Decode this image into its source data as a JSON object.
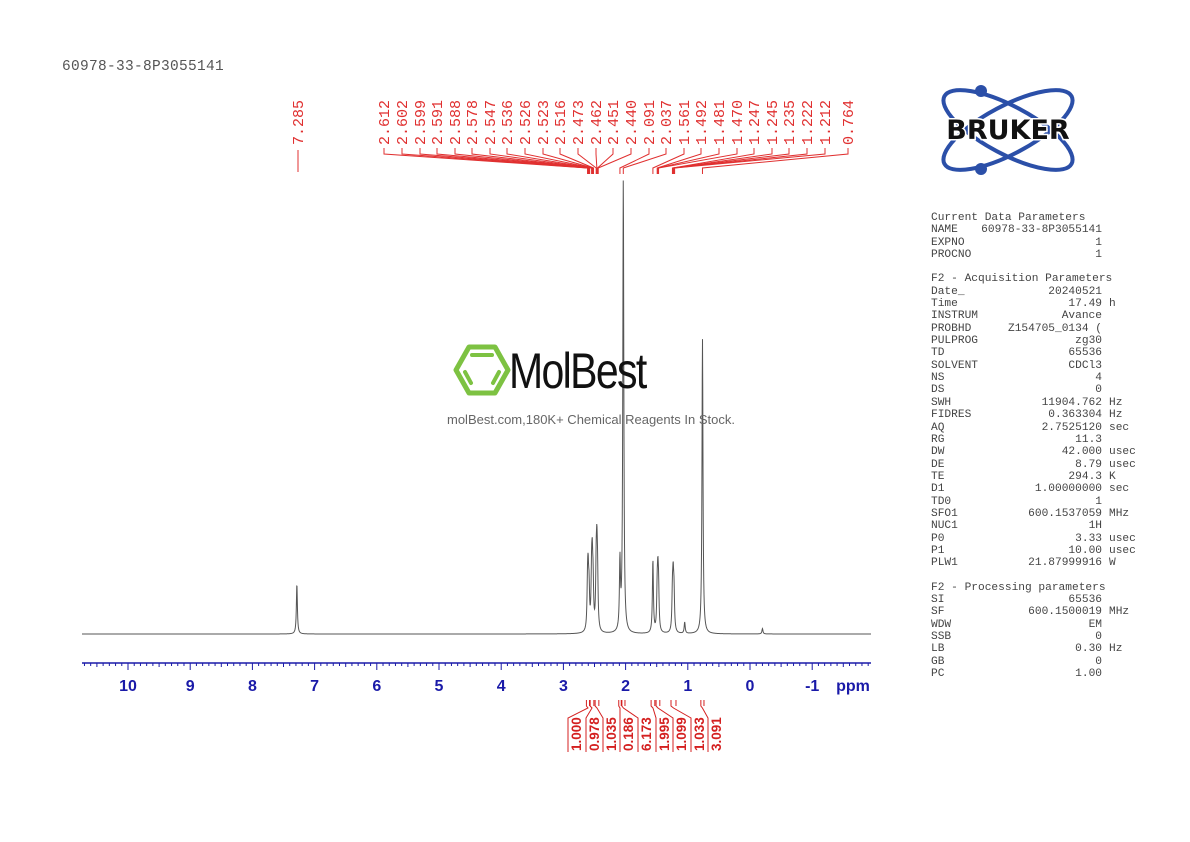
{
  "sample_title": "60978-33-8P3055141",
  "watermark": {
    "brand": "MolBest",
    "tagline": "molBest.com,180K+ Chemical Reagents In Stock.",
    "logo_color": "#7dc242"
  },
  "bruker_logo": {
    "text": "BRUKER",
    "orbit_color": "#2b4fa8",
    "text_color": "#111111"
  },
  "colors": {
    "peak_label": "#e03030",
    "axis": "#1a1aa8",
    "spectrum": "#555555",
    "integral": "#d42020"
  },
  "parameters": {
    "sections": [
      {
        "title": "Current Data Parameters",
        "rows": [
          {
            "key": "NAME",
            "value": "60978-33-8P3055141",
            "unit": ""
          },
          {
            "key": "EXPNO",
            "value": "1",
            "unit": ""
          },
          {
            "key": "PROCNO",
            "value": "1",
            "unit": ""
          }
        ]
      },
      {
        "title": "F2 - Acquisition Parameters",
        "rows": [
          {
            "key": "Date_",
            "value": "20240521",
            "unit": ""
          },
          {
            "key": "Time",
            "value": "17.49",
            "unit": "h"
          },
          {
            "key": "INSTRUM",
            "value": "Avance",
            "unit": ""
          },
          {
            "key": "PROBHD",
            "value": "Z154705_0134 (",
            "unit": ""
          },
          {
            "key": "PULPROG",
            "value": "zg30",
            "unit": ""
          },
          {
            "key": "TD",
            "value": "65536",
            "unit": ""
          },
          {
            "key": "SOLVENT",
            "value": "CDCl3",
            "unit": ""
          },
          {
            "key": "NS",
            "value": "4",
            "unit": ""
          },
          {
            "key": "DS",
            "value": "0",
            "unit": ""
          },
          {
            "key": "SWH",
            "value": "11904.762",
            "unit": "Hz"
          },
          {
            "key": "FIDRES",
            "value": "0.363304",
            "unit": "Hz"
          },
          {
            "key": "AQ",
            "value": "2.7525120",
            "unit": "sec"
          },
          {
            "key": "RG",
            "value": "11.3",
            "unit": ""
          },
          {
            "key": "DW",
            "value": "42.000",
            "unit": "usec"
          },
          {
            "key": "DE",
            "value": "8.79",
            "unit": "usec"
          },
          {
            "key": "TE",
            "value": "294.3",
            "unit": "K"
          },
          {
            "key": "D1",
            "value": "1.00000000",
            "unit": "sec"
          },
          {
            "key": "TD0",
            "value": "1",
            "unit": ""
          },
          {
            "key": "SFO1",
            "value": "600.1537059",
            "unit": "MHz"
          },
          {
            "key": "NUC1",
            "value": "1H",
            "unit": ""
          },
          {
            "key": "P0",
            "value": "3.33",
            "unit": "usec"
          },
          {
            "key": "P1",
            "value": "10.00",
            "unit": "usec"
          },
          {
            "key": "PLW1",
            "value": "21.87999916",
            "unit": "W"
          }
        ]
      },
      {
        "title": "F2 - Processing parameters",
        "rows": [
          {
            "key": "SI",
            "value": "65536",
            "unit": ""
          },
          {
            "key": "SF",
            "value": "600.1500019",
            "unit": "MHz"
          },
          {
            "key": "WDW",
            "value": "EM",
            "unit": ""
          },
          {
            "key": "SSB",
            "value": "0",
            "unit": ""
          },
          {
            "key": "LB",
            "value": "0.30",
            "unit": "Hz"
          },
          {
            "key": "GB",
            "value": "0",
            "unit": ""
          },
          {
            "key": "PC",
            "value": "1.00",
            "unit": ""
          }
        ]
      }
    ]
  },
  "chart_data": {
    "type": "line",
    "title": "60978-33-8P3055141",
    "subtitle": "1H NMR, 600 MHz, CDCl3",
    "xlabel": "ppm",
    "ylabel": "",
    "xlim": [
      10.7,
      -1.95
    ],
    "x_reversed": true,
    "grid": false,
    "legend": "none",
    "x_ticks": [
      10,
      9,
      8,
      7,
      6,
      5,
      4,
      3,
      2,
      1,
      0,
      -1
    ],
    "peak_labels": [
      "7.285",
      "2.612",
      "2.602",
      "2.599",
      "2.591",
      "2.588",
      "2.578",
      "2.547",
      "2.536",
      "2.526",
      "2.523",
      "2.516",
      "2.473",
      "2.462",
      "2.451",
      "2.440",
      "2.091",
      "2.037",
      "1.561",
      "1.492",
      "1.481",
      "1.470",
      "1.247",
      "1.245",
      "1.235",
      "1.222",
      "1.212",
      "0.764"
    ],
    "peaks": [
      {
        "ppm": 7.285,
        "height": 0.11
      },
      {
        "ppm": 2.612,
        "height": 0.09
      },
      {
        "ppm": 2.602,
        "height": 0.1
      },
      {
        "ppm": 2.588,
        "height": 0.08
      },
      {
        "ppm": 2.547,
        "height": 0.11
      },
      {
        "ppm": 2.536,
        "height": 0.12
      },
      {
        "ppm": 2.523,
        "height": 0.09
      },
      {
        "ppm": 2.473,
        "height": 0.12
      },
      {
        "ppm": 2.462,
        "height": 0.14
      },
      {
        "ppm": 2.451,
        "height": 0.1
      },
      {
        "ppm": 2.091,
        "height": 0.15
      },
      {
        "ppm": 2.037,
        "height": 1.0
      },
      {
        "ppm": 1.561,
        "height": 0.16
      },
      {
        "ppm": 1.492,
        "height": 0.08
      },
      {
        "ppm": 1.481,
        "height": 0.1
      },
      {
        "ppm": 1.47,
        "height": 0.08
      },
      {
        "ppm": 1.247,
        "height": 0.08
      },
      {
        "ppm": 1.235,
        "height": 0.1
      },
      {
        "ppm": 1.222,
        "height": 0.08
      },
      {
        "ppm": 1.05,
        "height": 0.025
      },
      {
        "ppm": 0.764,
        "height": 0.65
      },
      {
        "ppm": -0.2,
        "height": 0.012
      }
    ],
    "integrals": [
      {
        "value": "1.000",
        "from": 2.63,
        "to": 2.58
      },
      {
        "value": "0.978",
        "from": 2.57,
        "to": 2.51
      },
      {
        "value": "1.035",
        "from": 2.49,
        "to": 2.43
      },
      {
        "value": "0.186",
        "from": 2.11,
        "to": 2.07
      },
      {
        "value": "6.173",
        "from": 2.06,
        "to": 2.01
      },
      {
        "value": "1.995",
        "from": 1.59,
        "to": 1.53
      },
      {
        "value": "1.099",
        "from": 1.51,
        "to": 1.45
      },
      {
        "value": "1.033",
        "from": 1.27,
        "to": 1.19
      },
      {
        "value": "3.091",
        "from": 0.79,
        "to": 0.74
      }
    ]
  }
}
